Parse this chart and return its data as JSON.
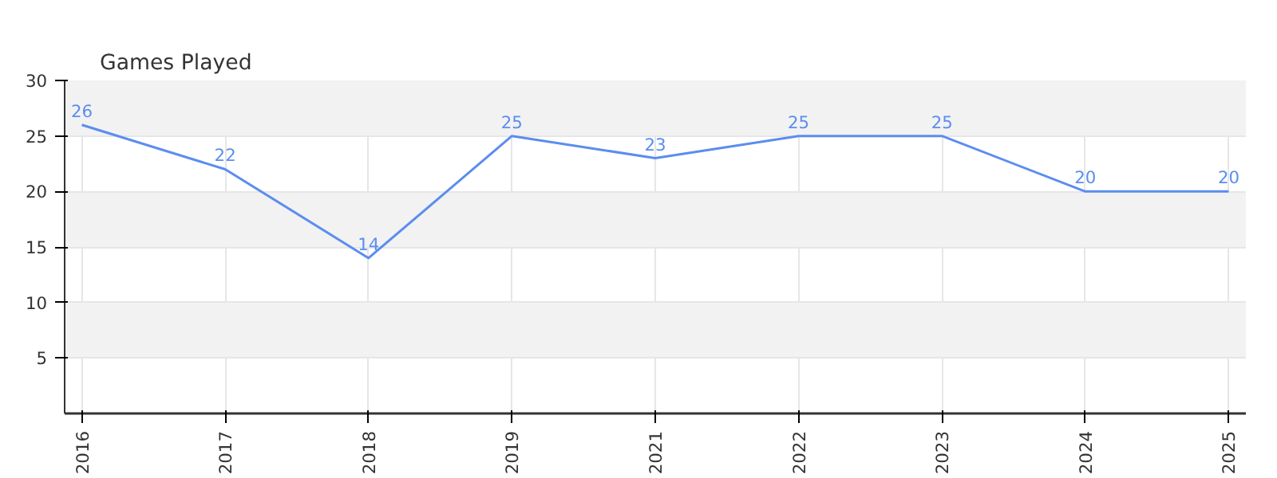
{
  "chart_data": {
    "type": "line",
    "title": "Games Played",
    "categories": [
      "2016",
      "2017",
      "2018",
      "2019",
      "2021",
      "2022",
      "2023",
      "2024",
      "2025"
    ],
    "series": [
      {
        "color": "#5b8def",
        "values": [
          26,
          22,
          14,
          25,
          23,
          25,
          25,
          20,
          20
        ]
      }
    ],
    "ylim": [
      0,
      30
    ],
    "yticks": [
      5,
      10,
      15,
      20,
      25,
      30
    ],
    "grid": true,
    "data_labels": true,
    "marker": "none",
    "line_style": "solid"
  }
}
